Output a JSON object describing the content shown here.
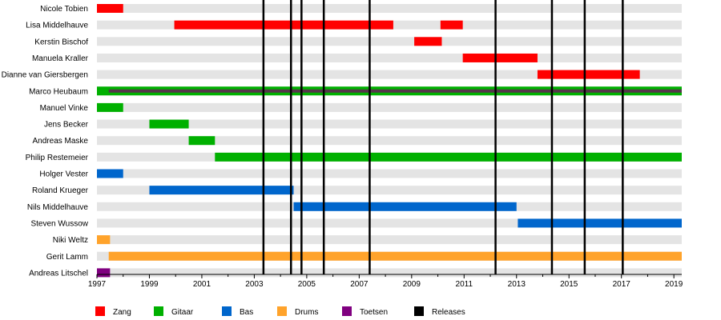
{
  "chart_data": {
    "type": "timeline",
    "title": "",
    "x_range": [
      1997,
      2019.3
    ],
    "x_ticks": [
      "1997",
      "1999",
      "2001",
      "2003",
      "2005",
      "2007",
      "2009",
      "2011",
      "2013",
      "2015",
      "2017",
      "2019"
    ],
    "members": [
      {
        "name": "Nicole Tobien",
        "periods": [
          {
            "role": "Zang",
            "start": 1997.0,
            "end": 1998.0
          }
        ]
      },
      {
        "name": "Lisa Middelhauve",
        "periods": [
          {
            "role": "Zang",
            "start": 1999.95,
            "end": 2008.3
          },
          {
            "role": "Zang",
            "start": 2010.1,
            "end": 2010.95
          }
        ]
      },
      {
        "name": "Kerstin Bischof",
        "periods": [
          {
            "role": "Zang",
            "start": 2009.1,
            "end": 2010.15
          }
        ]
      },
      {
        "name": "Manuela Kraller",
        "periods": [
          {
            "role": "Zang",
            "start": 2010.95,
            "end": 2013.8
          }
        ]
      },
      {
        "name": "Dianne van Giersbergen",
        "periods": [
          {
            "role": "Zang",
            "start": 2013.8,
            "end": 2017.7
          }
        ]
      },
      {
        "name": "Marco Heubaum",
        "periods": [
          {
            "role": "Gitaar",
            "start": 1997.0,
            "end": 2019.3
          },
          {
            "role": "Toetsen",
            "start": 1997.45,
            "end": 2019.3,
            "thin": true
          }
        ]
      },
      {
        "name": "Manuel Vinke",
        "periods": [
          {
            "role": "Gitaar",
            "start": 1997.0,
            "end": 1998.0
          }
        ]
      },
      {
        "name": "Jens Becker",
        "periods": [
          {
            "role": "Gitaar",
            "start": 1999.0,
            "end": 2000.5
          }
        ]
      },
      {
        "name": "Andreas Maske",
        "periods": [
          {
            "role": "Gitaar",
            "start": 2000.5,
            "end": 2001.5
          }
        ]
      },
      {
        "name": "Philip Restemeier",
        "periods": [
          {
            "role": "Gitaar",
            "start": 2001.5,
            "end": 2019.3
          }
        ]
      },
      {
        "name": "Holger Vester",
        "periods": [
          {
            "role": "Bas",
            "start": 1997.0,
            "end": 1998.0
          }
        ]
      },
      {
        "name": "Roland Krueger",
        "periods": [
          {
            "role": "Bas",
            "start": 1999.0,
            "end": 2004.5
          }
        ]
      },
      {
        "name": "Nils Middelhauve",
        "periods": [
          {
            "role": "Bas",
            "start": 2004.5,
            "end": 2013.0
          }
        ]
      },
      {
        "name": "Steven Wussow",
        "periods": [
          {
            "role": "Bas",
            "start": 2013.05,
            "end": 2019.3
          }
        ]
      },
      {
        "name": "Niki Weltz",
        "periods": [
          {
            "role": "Drums",
            "start": 1997.0,
            "end": 1997.5
          }
        ]
      },
      {
        "name": "Gerit Lamm",
        "periods": [
          {
            "role": "Drums",
            "start": 1997.45,
            "end": 2019.3
          }
        ]
      },
      {
        "name": "Andreas Litschel",
        "periods": [
          {
            "role": "Toetsen",
            "start": 1997.0,
            "end": 1997.5
          }
        ]
      }
    ],
    "releases": [
      2003.35,
      2004.4,
      2004.8,
      2005.65,
      2007.4,
      2012.2,
      2014.35,
      2015.6,
      2017.05
    ],
    "legend": [
      {
        "label": "Zang",
        "color": "#ff0000"
      },
      {
        "label": "Gitaar",
        "color": "#00b000"
      },
      {
        "label": "Bas",
        "color": "#0066cc"
      },
      {
        "label": "Drums",
        "color": "#ffa32b"
      },
      {
        "label": "Toetsen",
        "color": "#800080"
      },
      {
        "label": "Releases",
        "color": "#000000"
      }
    ],
    "row_background_color": "#e4e4e4",
    "toetsen_overlay_color": "#55364a",
    "grid": false
  }
}
